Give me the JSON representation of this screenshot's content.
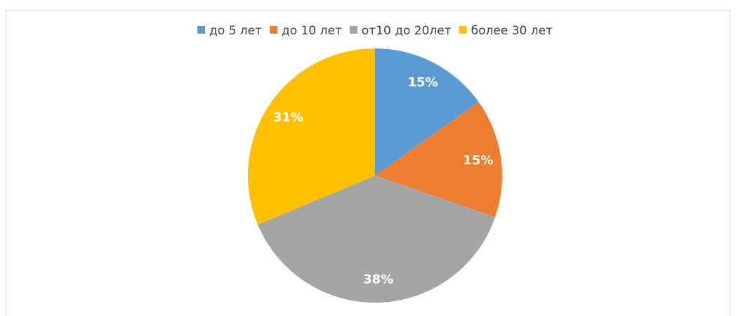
{
  "chart_data": {
    "type": "pie",
    "categories": [
      "до 5 лет",
      "до 10 лет",
      "от10 до 20лет",
      "более 30 лет"
    ],
    "values": [
      15,
      15,
      38,
      31
    ],
    "value_labels": [
      "15%",
      "15%",
      "38%",
      "31%"
    ],
    "colors": [
      "#5b9bd5",
      "#ed7d31",
      "#a5a5a5",
      "#ffc000"
    ],
    "legend": "top"
  }
}
